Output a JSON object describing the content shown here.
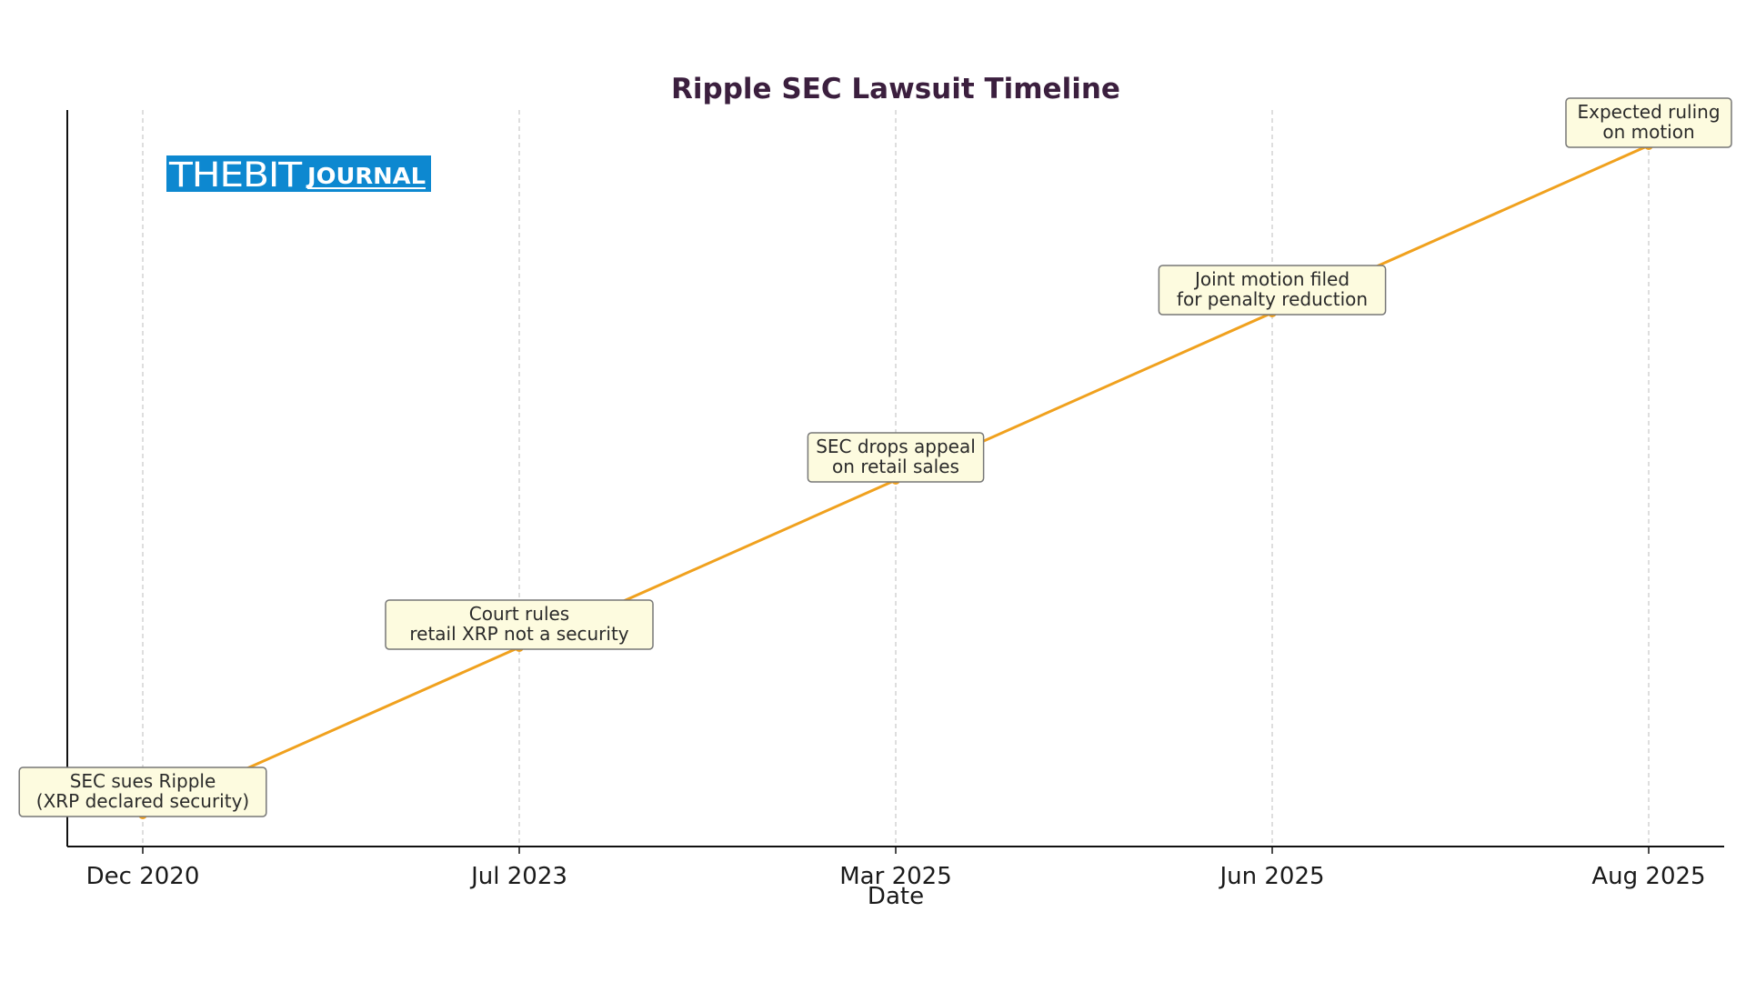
{
  "chart_data": {
    "type": "line",
    "title": "Ripple SEC Lawsuit Timeline",
    "xlabel": "Date",
    "ylabel": "",
    "categories": [
      "Dec 2020",
      "Jul 2023",
      "Mar 2025",
      "Jun 2025",
      "Aug 2025"
    ],
    "values": [
      0,
      1,
      2,
      3,
      4
    ],
    "annotations": [
      "SEC sues Ripple\n(XRP declared security)",
      "Court rules\nretail XRP not a security",
      "SEC drops appeal\non retail sales",
      "Joint motion filed\nfor penalty reduction",
      "Expected ruling\non motion"
    ],
    "ylim": [
      -0.2,
      4.2
    ],
    "grid": "vertical-dashed",
    "line_color": "#f0a11e",
    "annotation_bg": "#fdfbdf",
    "annotation_border": "#777777"
  },
  "logo": {
    "text_main": "THEBIT",
    "text_sub": "JOURNAL",
    "color": "#0d88d0"
  }
}
